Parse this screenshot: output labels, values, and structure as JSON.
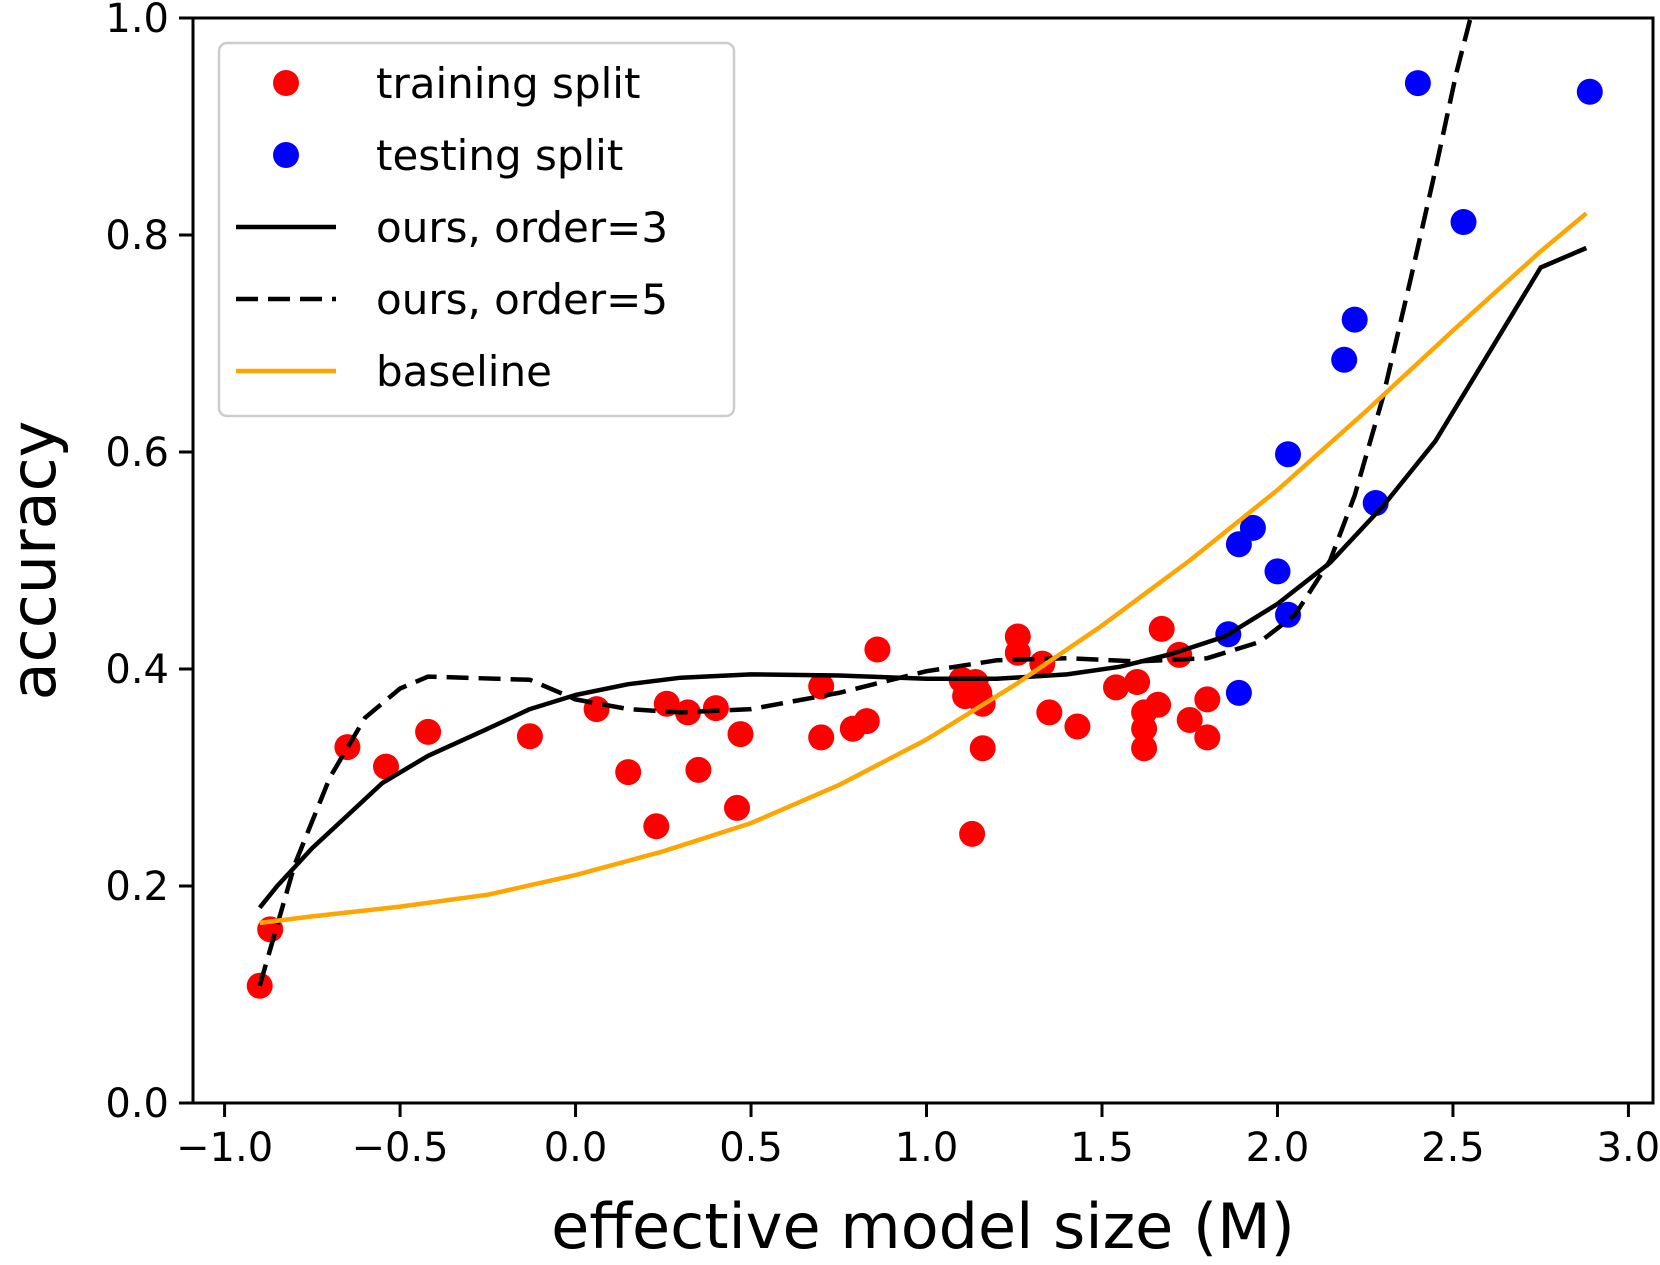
{
  "chart_data": {
    "type": "scatter",
    "xlabel": "effective model size (M)",
    "ylabel": "accuracy",
    "xlim": [
      -1.09,
      3.07
    ],
    "ylim": [
      0.0,
      1.0
    ],
    "xticks": [
      -1.0,
      -0.5,
      0.0,
      0.5,
      1.0,
      1.5,
      2.0,
      2.5,
      3.0
    ],
    "xtick_labels": [
      "−1.0",
      "−0.5",
      "0.0",
      "0.5",
      "1.0",
      "1.5",
      "2.0",
      "2.5",
      "3.0"
    ],
    "yticks": [
      0.0,
      0.2,
      0.4,
      0.6,
      0.8,
      1.0
    ],
    "ytick_labels": [
      "0.0",
      "0.2",
      "0.4",
      "0.6",
      "0.8",
      "1.0"
    ],
    "grid": false,
    "legend_position": "top-left",
    "series": [
      {
        "name": "training split",
        "kind": "scatter",
        "color": "#ff0000",
        "points": [
          [
            -0.9,
            0.108
          ],
          [
            -0.87,
            0.16
          ],
          [
            -0.65,
            0.328
          ],
          [
            -0.54,
            0.31
          ],
          [
            -0.42,
            0.342
          ],
          [
            -0.13,
            0.338
          ],
          [
            0.06,
            0.363
          ],
          [
            0.15,
            0.305
          ],
          [
            0.23,
            0.255
          ],
          [
            0.26,
            0.368
          ],
          [
            0.32,
            0.36
          ],
          [
            0.35,
            0.307
          ],
          [
            0.4,
            0.364
          ],
          [
            0.46,
            0.272
          ],
          [
            0.47,
            0.34
          ],
          [
            0.7,
            0.384
          ],
          [
            0.7,
            0.337
          ],
          [
            0.79,
            0.345
          ],
          [
            0.83,
            0.352
          ],
          [
            0.86,
            0.418
          ],
          [
            1.1,
            0.39
          ],
          [
            1.11,
            0.375
          ],
          [
            1.13,
            0.248
          ],
          [
            1.14,
            0.388
          ],
          [
            1.15,
            0.378
          ],
          [
            1.16,
            0.368
          ],
          [
            1.16,
            0.327
          ],
          [
            1.26,
            0.43
          ],
          [
            1.26,
            0.415
          ],
          [
            1.33,
            0.405
          ],
          [
            1.35,
            0.36
          ],
          [
            1.43,
            0.347
          ],
          [
            1.54,
            0.383
          ],
          [
            1.6,
            0.388
          ],
          [
            1.62,
            0.36
          ],
          [
            1.62,
            0.345
          ],
          [
            1.62,
            0.327
          ],
          [
            1.66,
            0.367
          ],
          [
            1.67,
            0.437
          ],
          [
            1.72,
            0.413
          ],
          [
            1.75,
            0.353
          ],
          [
            1.8,
            0.372
          ],
          [
            1.8,
            0.337
          ]
        ]
      },
      {
        "name": "testing split",
        "kind": "scatter",
        "color": "#0000ff",
        "points": [
          [
            1.86,
            0.432
          ],
          [
            1.89,
            0.378
          ],
          [
            1.89,
            0.515
          ],
          [
            1.93,
            0.53
          ],
          [
            2.0,
            0.49
          ],
          [
            2.03,
            0.45
          ],
          [
            2.03,
            0.598
          ],
          [
            2.19,
            0.685
          ],
          [
            2.22,
            0.722
          ],
          [
            2.28,
            0.553
          ],
          [
            2.4,
            0.94
          ],
          [
            2.53,
            0.812
          ],
          [
            2.89,
            0.932
          ]
        ]
      },
      {
        "name": "ours, order=3",
        "kind": "line",
        "color": "#000000",
        "dash": "solid",
        "points": [
          [
            -0.9,
            0.18
          ],
          [
            -0.85,
            0.2
          ],
          [
            -0.75,
            0.235
          ],
          [
            -0.65,
            0.265
          ],
          [
            -0.55,
            0.295
          ],
          [
            -0.42,
            0.32
          ],
          [
            -0.25,
            0.345
          ],
          [
            -0.13,
            0.363
          ],
          [
            0.0,
            0.376
          ],
          [
            0.15,
            0.386
          ],
          [
            0.3,
            0.392
          ],
          [
            0.5,
            0.395
          ],
          [
            0.75,
            0.394
          ],
          [
            1.0,
            0.391
          ],
          [
            1.2,
            0.391
          ],
          [
            1.4,
            0.395
          ],
          [
            1.55,
            0.402
          ],
          [
            1.7,
            0.414
          ],
          [
            1.85,
            0.43
          ],
          [
            2.0,
            0.46
          ],
          [
            2.15,
            0.498
          ],
          [
            2.3,
            0.55
          ],
          [
            2.45,
            0.61
          ],
          [
            2.6,
            0.69
          ],
          [
            2.75,
            0.77
          ],
          [
            2.88,
            0.788
          ]
        ]
      },
      {
        "name": "ours, order=5",
        "kind": "line",
        "color": "#000000",
        "dash": "dashed",
        "points": [
          [
            -0.9,
            0.108
          ],
          [
            -0.8,
            0.22
          ],
          [
            -0.7,
            0.3
          ],
          [
            -0.6,
            0.355
          ],
          [
            -0.5,
            0.382
          ],
          [
            -0.42,
            0.393
          ],
          [
            -0.13,
            0.39
          ],
          [
            0.0,
            0.372
          ],
          [
            0.15,
            0.363
          ],
          [
            0.3,
            0.36
          ],
          [
            0.5,
            0.363
          ],
          [
            0.75,
            0.378
          ],
          [
            1.0,
            0.398
          ],
          [
            1.2,
            0.408
          ],
          [
            1.4,
            0.41
          ],
          [
            1.6,
            0.407
          ],
          [
            1.8,
            0.41
          ],
          [
            1.95,
            0.425
          ],
          [
            2.05,
            0.45
          ],
          [
            2.15,
            0.5
          ],
          [
            2.22,
            0.56
          ],
          [
            2.3,
            0.65
          ],
          [
            2.38,
            0.76
          ],
          [
            2.45,
            0.86
          ],
          [
            2.51,
            0.95
          ],
          [
            2.55,
            1.0
          ]
        ]
      },
      {
        "name": "baseline",
        "kind": "line",
        "color": "#ffa500",
        "dash": "solid",
        "points": [
          [
            -0.9,
            0.166
          ],
          [
            -0.75,
            0.172
          ],
          [
            -0.5,
            0.181
          ],
          [
            -0.25,
            0.192
          ],
          [
            0.0,
            0.21
          ],
          [
            0.25,
            0.232
          ],
          [
            0.5,
            0.258
          ],
          [
            0.75,
            0.293
          ],
          [
            1.0,
            0.335
          ],
          [
            1.25,
            0.385
          ],
          [
            1.5,
            0.44
          ],
          [
            1.75,
            0.5
          ],
          [
            2.0,
            0.565
          ],
          [
            2.25,
            0.637
          ],
          [
            2.5,
            0.712
          ],
          [
            2.75,
            0.785
          ],
          [
            2.88,
            0.82
          ]
        ]
      }
    ]
  }
}
